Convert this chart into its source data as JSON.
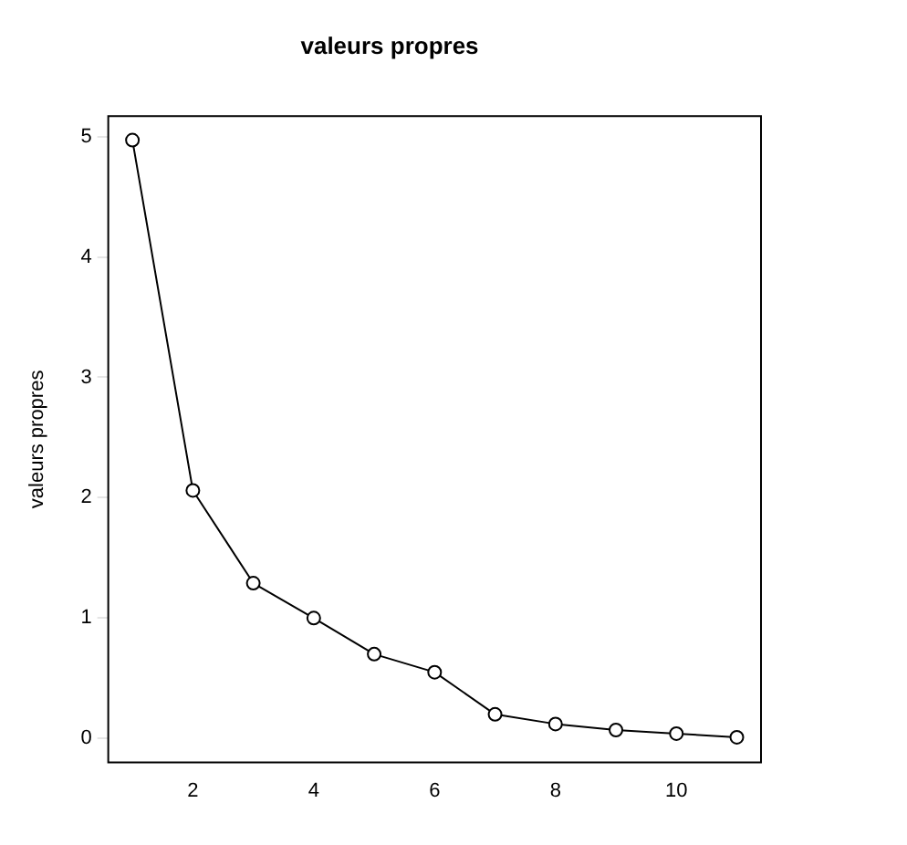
{
  "chart_data": {
    "type": "line",
    "title": "valeurs propres",
    "ylabel": "valeurs propres",
    "x": [
      1,
      2,
      3,
      4,
      5,
      6,
      7,
      8,
      9,
      10,
      11
    ],
    "series": [
      {
        "color": "#000000",
        "values": [
          4.97,
          2.06,
          1.29,
          1.0,
          0.7,
          0.55,
          0.2,
          0.12,
          0.07,
          0.04,
          0.01
        ]
      }
    ],
    "xlim": [
      0.6,
      11.4
    ],
    "xticks": [
      2,
      4,
      6,
      8,
      10
    ],
    "ylim": [
      -0.2,
      5.17
    ],
    "yticks": [
      0,
      1,
      2,
      3,
      4,
      5
    ],
    "grid": false,
    "legend": false,
    "marker": "circle",
    "line_style": "solid"
  }
}
